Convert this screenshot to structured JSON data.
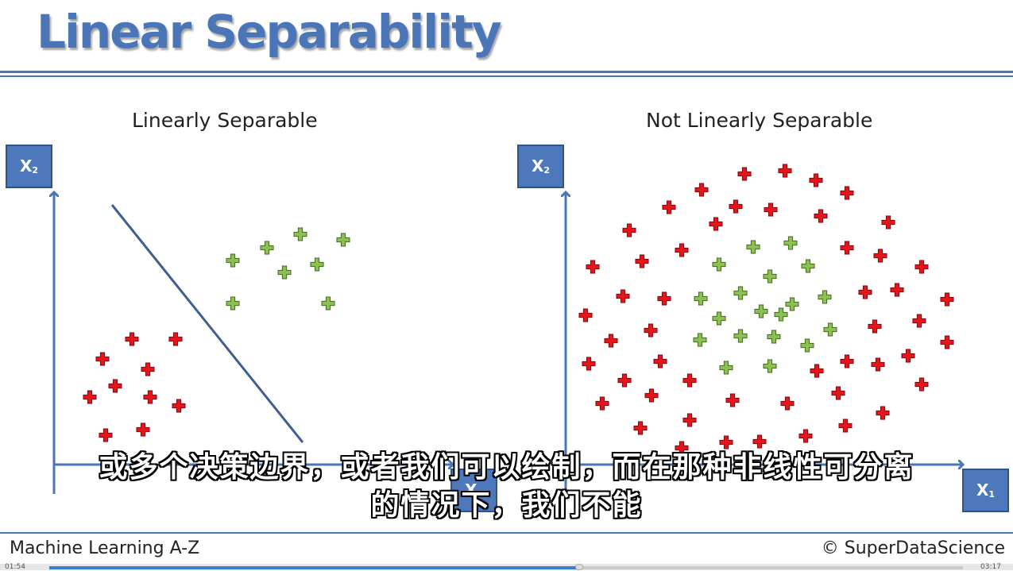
{
  "slide": {
    "title": "Linear Separability",
    "footer_left": "Machine Learning A-Z",
    "footer_right": "© SuperDataScience"
  },
  "subtitles": {
    "line1": "或多个决策边界，或者我们可以绘制，而在那种非线性可分离",
    "line2": "的情况下，我们不能"
  },
  "player": {
    "elapsed": "01:54",
    "duration": "03:17",
    "progress_fraction": 0.58
  },
  "colors": {
    "accent": "#4a76b8",
    "red_class": "#e8141c",
    "green_class": "#8cc152"
  },
  "chart_data": [
    {
      "type": "scatter",
      "title": "Linearly Separable",
      "xlabel": "X1",
      "ylabel": "X2",
      "axis_labels": {
        "x_main": "X",
        "x_sub": "1",
        "y_main": "X",
        "y_sub": "2"
      },
      "decision_boundary": true,
      "series": [
        {
          "class": "red",
          "points": [
            [
              166,
              427
            ],
            [
              221,
              427
            ],
            [
              129,
              452
            ],
            [
              186,
              465
            ],
            [
              145,
              486
            ],
            [
              113,
              500
            ],
            [
              189,
              500
            ],
            [
              225,
              511
            ],
            [
              133,
              548
            ],
            [
              180,
              541
            ]
          ]
        },
        {
          "class": "green",
          "points": [
            [
              378,
              295
            ],
            [
              432,
              302
            ],
            [
              293,
              328
            ],
            [
              336,
              312
            ],
            [
              358,
              343
            ],
            [
              399,
              333
            ],
            [
              293,
              382
            ],
            [
              413,
              382
            ]
          ]
        }
      ]
    },
    {
      "type": "scatter",
      "title": "Not Linearly Separable",
      "xlabel": "X1",
      "ylabel": "X2",
      "axis_labels": {
        "x_main": "X",
        "x_sub": "1",
        "y_main": "X",
        "y_sub": "2"
      },
      "decision_boundary": false,
      "series": [
        {
          "class": "red",
          "points": [
            [
              937,
              219
            ],
            [
              988,
              215
            ],
            [
              1027,
              227
            ],
            [
              1066,
              243
            ],
            [
              883,
              239
            ],
            [
              842,
              261
            ],
            [
              926,
              260
            ],
            [
              970,
              264
            ],
            [
              901,
              282
            ],
            [
              1033,
              272
            ],
            [
              1118,
              280
            ],
            [
              792,
              290
            ],
            [
              858,
              315
            ],
            [
              1066,
              312
            ],
            [
              1108,
              322
            ],
            [
              808,
              329
            ],
            [
              746,
              336
            ],
            [
              1160,
              336
            ],
            [
              784,
              373
            ],
            [
              836,
              376
            ],
            [
              1089,
              368
            ],
            [
              1129,
              365
            ],
            [
              1192,
              377
            ],
            [
              737,
              397
            ],
            [
              1157,
              404
            ],
            [
              819,
              416
            ],
            [
              1101,
              411
            ],
            [
              769,
              429
            ],
            [
              1192,
              431
            ],
            [
              741,
              458
            ],
            [
              831,
              455
            ],
            [
              1066,
              455
            ],
            [
              1105,
              459
            ],
            [
              1143,
              448
            ],
            [
              1028,
              467
            ],
            [
              868,
              479
            ],
            [
              786,
              479
            ],
            [
              1160,
              484
            ],
            [
              820,
              498
            ],
            [
              922,
              504
            ],
            [
              991,
              508
            ],
            [
              1055,
              495
            ],
            [
              758,
              508
            ],
            [
              1111,
              520
            ],
            [
              868,
              529
            ],
            [
              806,
              539
            ],
            [
              1064,
              536
            ],
            [
              858,
              564
            ],
            [
              914,
              557
            ],
            [
              956,
              556
            ],
            [
              1014,
              549
            ]
          ]
        },
        {
          "class": "green",
          "points": [
            [
              948,
              311
            ],
            [
              995,
              306
            ],
            [
              905,
              333
            ],
            [
              1017,
              335
            ],
            [
              969,
              348
            ],
            [
              882,
              376
            ],
            [
              932,
              369
            ],
            [
              997,
              383
            ],
            [
              1038,
              374
            ],
            [
              958,
              392
            ],
            [
              905,
              401
            ],
            [
              983,
              396
            ],
            [
              881,
              428
            ],
            [
              932,
              423
            ],
            [
              974,
              424
            ],
            [
              1045,
              415
            ],
            [
              1016,
              435
            ],
            [
              914,
              463
            ],
            [
              969,
              461
            ]
          ]
        }
      ]
    }
  ]
}
